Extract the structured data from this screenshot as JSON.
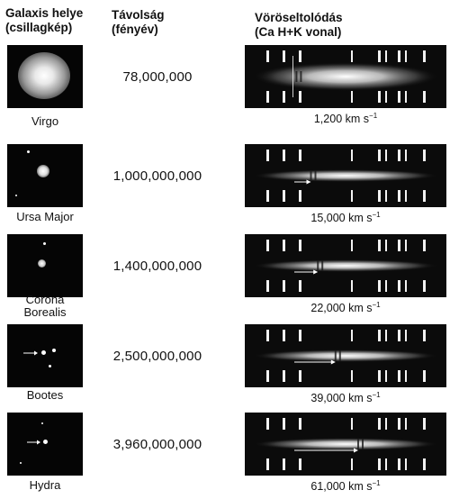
{
  "headers": {
    "galaxy": [
      "Galaxis helye",
      "(csillagkép)"
    ],
    "distance": [
      "Távolság",
      "(fényév)"
    ],
    "redshift": [
      "Vöröseltolódás",
      "(Ca H+K vonal)"
    ]
  },
  "rows": [
    {
      "name": [
        "Virgo"
      ],
      "distance": "78,000,000",
      "velocity": "1,200",
      "unit": "km s",
      "exp": "−1",
      "redshift_fraction": 0.02
    },
    {
      "name": [
        "Ursa Major"
      ],
      "distance": "1,000,000,000",
      "velocity": "15,000",
      "unit": "km s",
      "exp": "−1",
      "redshift_fraction": 0.25
    },
    {
      "name": [
        "Corona",
        "Borealis"
      ],
      "distance": "1,400,000,000",
      "velocity": "22,000",
      "unit": "km s",
      "exp": "−1",
      "redshift_fraction": 0.36
    },
    {
      "name": [
        "Bootes"
      ],
      "distance": "2,500,000,000",
      "velocity": "39,000",
      "unit": "km s",
      "exp": "−1",
      "redshift_fraction": 0.64
    },
    {
      "name": [
        "Hydra"
      ],
      "distance": "3,960,000,000",
      "velocity": "61,000",
      "unit": "km s",
      "exp": "−1",
      "redshift_fraction": 1.0
    }
  ],
  "colors": {
    "background": "#ffffff",
    "photo": "#050505",
    "spectrum_bg": "#0b0b0b",
    "line": "#f2f2f2"
  }
}
